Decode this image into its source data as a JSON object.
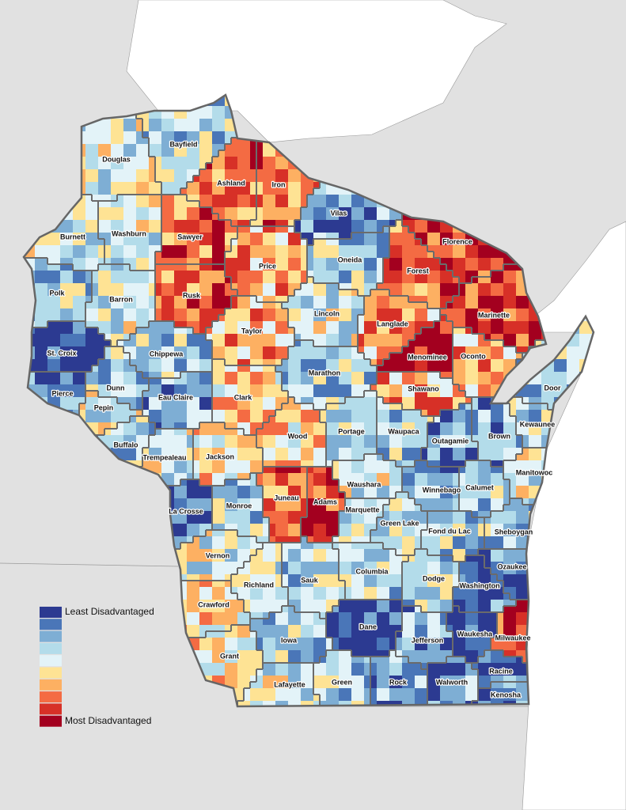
{
  "map": {
    "counties": [
      "Bayfield",
      "Douglas",
      "Ashland",
      "Iron",
      "Vilas",
      "Burnett",
      "Washburn",
      "Sawyer",
      "Florence",
      "Oneida",
      "Forest",
      "Price",
      "Polk",
      "Barron",
      "Rusk",
      "Marinette",
      "Lincoln",
      "Taylor",
      "Langlade",
      "St. Croix",
      "Chippewa",
      "Menominee",
      "Oconto",
      "Marathon",
      "Dunn",
      "Pierce",
      "Shawano",
      "Door",
      "Clark",
      "Eau Claire",
      "Pepin",
      "Brown",
      "Kewaunee",
      "Wood",
      "Portage",
      "Waupaca",
      "Outagamie",
      "Buffalo",
      "Trempealeau",
      "Jackson",
      "Manitowoc",
      "Waushara",
      "Winnebago",
      "Calumet",
      "Juneau",
      "Adams",
      "La Crosse",
      "Monroe",
      "Marquette",
      "Green Lake",
      "Fond du Lac",
      "Sheboygan",
      "Vernon",
      "Columbia",
      "Ozaukee",
      "Richland",
      "Sauk",
      "Dodge",
      "Washington",
      "Crawford",
      "Dane",
      "Waukesha",
      "Jefferson",
      "Milwaukee",
      "Iowa",
      "Grant",
      "Racine",
      "Green",
      "Rock",
      "Walworth",
      "Lafayette",
      "Kenosha"
    ]
  },
  "legend": {
    "colors": [
      "#2c3a91",
      "#4a76b8",
      "#7eaed4",
      "#b3dcea",
      "#e3f3f8",
      "#fee394",
      "#fdb062",
      "#f46b43",
      "#d73027",
      "#a3001f"
    ],
    "least": "Least Disadvantaged",
    "most": "Most Disadvantaged"
  }
}
